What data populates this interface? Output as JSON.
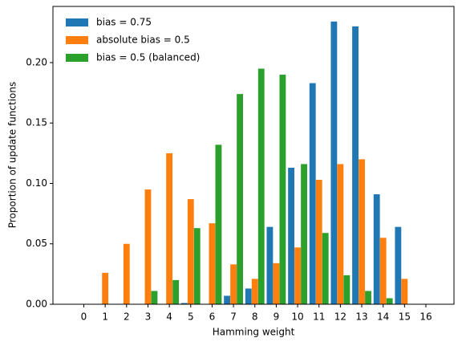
{
  "chart_data": {
    "type": "bar",
    "xlabel": "Hamming weight",
    "ylabel": "Proportion of update functions",
    "categories": [
      "0",
      "1",
      "2",
      "3",
      "4",
      "5",
      "6",
      "7",
      "8",
      "9",
      "10",
      "11",
      "12",
      "13",
      "14",
      "15",
      "16"
    ],
    "series": [
      {
        "name": "bias = 0.75",
        "color": "#1f77b4",
        "values": [
          0,
          0,
          0,
          0,
          0,
          0.001,
          0,
          0.007,
          0.013,
          0.064,
          0.113,
          0.183,
          0.234,
          0.23,
          0.091,
          0.064,
          0
        ]
      },
      {
        "name": "absolute bias = 0.5",
        "color": "#ff7f0e",
        "values": [
          0,
          0.026,
          0.05,
          0.095,
          0.125,
          0.087,
          0.067,
          0.033,
          0.021,
          0.034,
          0.047,
          0.103,
          0.116,
          0.12,
          0.055,
          0.021,
          0
        ]
      },
      {
        "name": "bias = 0.5 (balanced)",
        "color": "#2ca02c",
        "values": [
          0,
          0,
          0,
          0.011,
          0.02,
          0.063,
          0.132,
          0.174,
          0.195,
          0.19,
          0.116,
          0.059,
          0.024,
          0.011,
          0.005,
          0,
          0
        ]
      }
    ],
    "ylim": [
      0,
      0.2465
    ],
    "yticks": [
      {
        "value": 0,
        "label": "0.00"
      },
      {
        "value": 0.05,
        "label": "0.05"
      },
      {
        "value": 0.1,
        "label": "0.10"
      },
      {
        "value": 0.15,
        "label": "0.15"
      },
      {
        "value": 0.2,
        "label": "0.20"
      }
    ],
    "legend": "upper left"
  }
}
